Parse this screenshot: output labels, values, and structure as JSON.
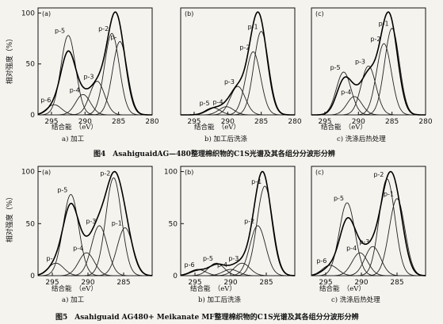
{
  "figure4": {
    "caption": "图4　AsahiguaidAG—480整理棉织物的C1S光谱及其各组分分波形分辨",
    "ylabel": "相对强度（%）",
    "xlabel": "结合能　（eV）"
  },
  "figure5": {
    "caption": "图5　Asahiguaid AG480+ Meikanate MF整理棉织物的C1S光谱及其各组分分波形分辨",
    "ylabel": "相对强度（%）",
    "xlabel": "结合能　（eV）"
  },
  "chart_data": [
    {
      "type": "line",
      "panel": "(a)",
      "subcaption": "a) 加工",
      "xticks": [
        295,
        290,
        285,
        280
      ],
      "yticks": [
        0,
        50,
        100
      ],
      "xlim": [
        297,
        280
      ],
      "ylim": [
        0,
        105
      ],
      "peaks": [
        {
          "label": "p-6",
          "x": 294.6,
          "y": 10
        },
        {
          "label": "p-5",
          "x": 292.5,
          "y": 78
        },
        {
          "label": "p-4",
          "x": 290.3,
          "y": 20
        },
        {
          "label": "p-3",
          "x": 288.2,
          "y": 33
        },
        {
          "label": "p-2",
          "x": 286.0,
          "y": 80
        },
        {
          "label": "p-",
          "x": 284.8,
          "y": 72
        }
      ],
      "envelope_peak": 101
    },
    {
      "type": "line",
      "panel": "(b)",
      "subcaption": "b) 加工后洗涤",
      "xticks": [
        295,
        290,
        285,
        280
      ],
      "yticks": [],
      "xlim": [
        297,
        280
      ],
      "ylim": [
        0,
        105
      ],
      "peaks": [
        {
          "label": "p-5",
          "x": 292.2,
          "y": 7
        },
        {
          "label": "p-4",
          "x": 290.2,
          "y": 8
        },
        {
          "label": "p-3",
          "x": 288.5,
          "y": 28
        },
        {
          "label": "p-2",
          "x": 286.2,
          "y": 62
        },
        {
          "label": "p-1",
          "x": 285.0,
          "y": 82
        }
      ],
      "envelope_peak": 101
    },
    {
      "type": "line",
      "panel": "(c)",
      "subcaption": "c) 洗涤后热处理",
      "xticks": [
        295,
        290,
        285,
        280
      ],
      "yticks": [],
      "xlim": [
        297,
        280
      ],
      "ylim": [
        0,
        105
      ],
      "peaks": [
        {
          "label": "p-5",
          "x": 292.2,
          "y": 42
        },
        {
          "label": "p-4",
          "x": 290.6,
          "y": 18
        },
        {
          "label": "p-3",
          "x": 288.5,
          "y": 48
        },
        {
          "label": "p-2",
          "x": 286.2,
          "y": 70
        },
        {
          "label": "p-1",
          "x": 285.0,
          "y": 85
        }
      ],
      "envelope_peak": 101
    },
    {
      "type": "line",
      "panel": "(a)",
      "subcaption": "a) 加工",
      "xticks": [
        295,
        290,
        285
      ],
      "yticks": [
        0,
        50,
        100
      ],
      "xlim": [
        297,
        281
      ],
      "ylim": [
        0,
        105
      ],
      "peaks": [
        {
          "label": "p-5",
          "x": 292.4,
          "y": 78
        },
        {
          "label": "p-4",
          "x": 290.2,
          "y": 22
        },
        {
          "label": "p-3",
          "x": 288.4,
          "y": 48
        },
        {
          "label": "p-2",
          "x": 286.4,
          "y": 94
        },
        {
          "label": "p-1",
          "x": 284.8,
          "y": 46
        },
        {
          "label": "p-",
          "x": 294.5,
          "y": 12
        }
      ],
      "envelope_peak": 100
    },
    {
      "type": "line",
      "panel": "(b)",
      "subcaption": "b) 加工后洗涤",
      "xticks": [
        295,
        290,
        285
      ],
      "yticks": [
        0,
        50,
        100
      ],
      "xlim": [
        297,
        281
      ],
      "ylim": [
        0,
        105
      ],
      "peaks": [
        {
          "label": "p-6",
          "x": 294.6,
          "y": 6
        },
        {
          "label": "p-5",
          "x": 292.0,
          "y": 12
        },
        {
          "label": "p-4",
          "x": 290.0,
          "y": 6
        },
        {
          "label": "p-3",
          "x": 288.4,
          "y": 12
        },
        {
          "label": "p-2",
          "x": 286.2,
          "y": 48
        },
        {
          "label": "p-1",
          "x": 285.2,
          "y": 86
        }
      ],
      "envelope_peak": 100
    },
    {
      "type": "line",
      "panel": "(c)",
      "subcaption": "c) 洗涤后热处理",
      "xticks": [
        295,
        290,
        285
      ],
      "yticks": [],
      "xlim": [
        297,
        281
      ],
      "ylim": [
        0,
        105
      ],
      "peaks": [
        {
          "label": "p-6",
          "x": 294.4,
          "y": 10
        },
        {
          "label": "p-5",
          "x": 292.0,
          "y": 70
        },
        {
          "label": "p-4",
          "x": 290.2,
          "y": 22
        },
        {
          "label": "p-3",
          "x": 288.4,
          "y": 28
        },
        {
          "label": "p-2",
          "x": 286.4,
          "y": 93
        },
        {
          "label": "p-1",
          "x": 285.0,
          "y": 74
        }
      ],
      "envelope_peak": 100
    }
  ]
}
